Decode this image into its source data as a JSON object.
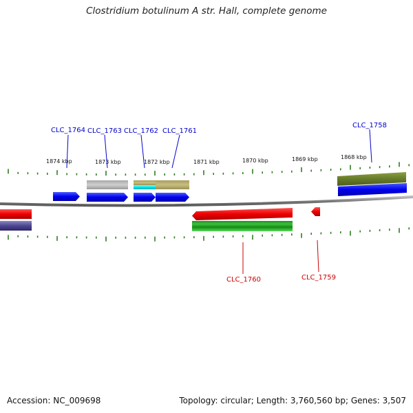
{
  "title": "Clostridium botulinum A str. Hall, complete genome",
  "footer": {
    "accession": "Accession: NC_009698",
    "summary": "Topology: circular; Length: 3,760,560 bp; Genes: 3,507"
  },
  "colors": {
    "forward_label": "#0000cc",
    "reverse_label": "#cc0000",
    "backbone": "#8c8c8c",
    "tick": "#2f7d1e"
  },
  "kbp_ticks": [
    "1874 kbp",
    "1873 kbp",
    "1872 kbp",
    "1871 kbp",
    "1870 kbp",
    "1869 kbp",
    "1868 kbp"
  ],
  "gene_labels": {
    "forward": [
      "CLC_1764",
      "CLC_1763",
      "CLC_1762",
      "CLC_1761",
      "CLC_1758"
    ],
    "reverse": [
      "CLC_1760",
      "CLC_1759"
    ]
  }
}
